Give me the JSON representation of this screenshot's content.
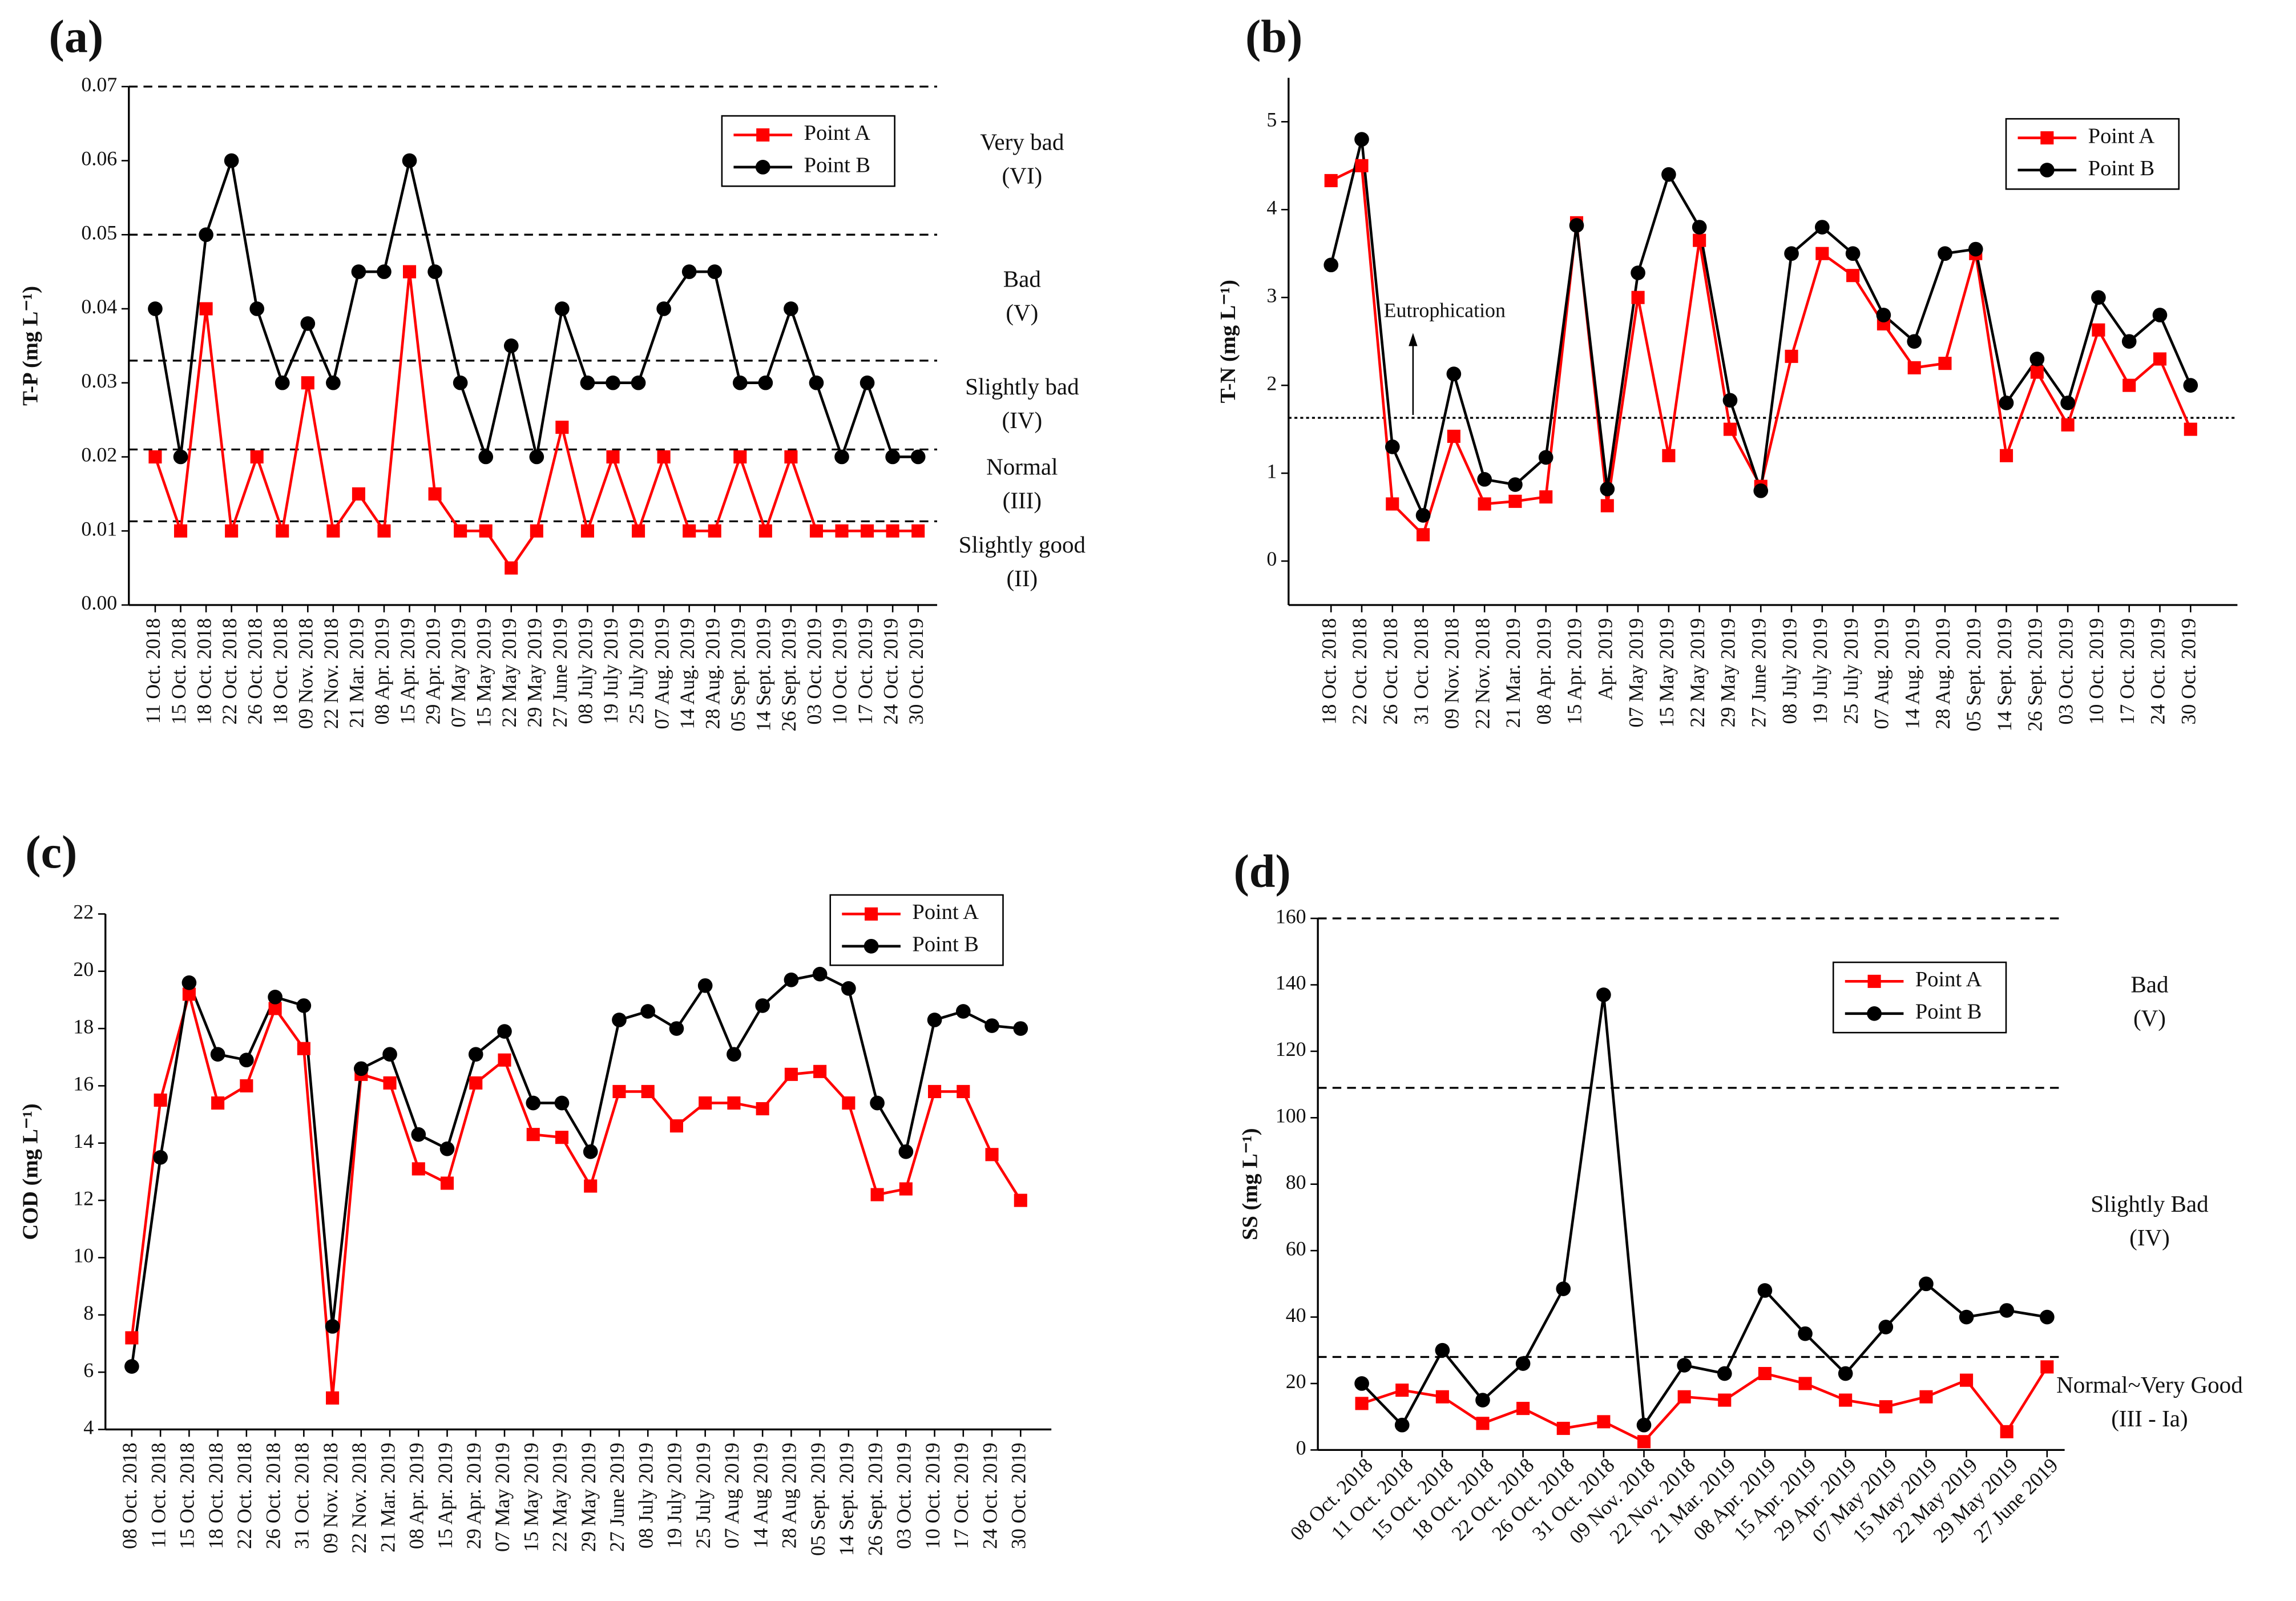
{
  "chart_data": [
    {
      "type": "line",
      "panel": "(a)",
      "ylabel": "T-P (mg L⁻¹)",
      "categories": [
        "11 Oct. 2018",
        "15 Oct. 2018",
        "18 Oct. 2018",
        "22 Oct. 2018",
        "26 Oct. 2018",
        "18 Oct. 2018",
        "09 Nov. 2018",
        "22 Nov. 2018",
        "21 Mar. 2019",
        "08 Apr. 2019",
        "15 Apr. 2019",
        "29 Apr. 2019",
        "07 May 2019",
        "15 May 2019",
        "22 May 2019",
        "29 May 2019",
        "27 June 2019",
        "08 July 2019",
        "19 July 2019",
        "25 July 2019",
        "07 Aug. 2019",
        "14 Aug. 2019",
        "28 Aug. 2019",
        "05 Sept. 2019",
        "14 Sept. 2019",
        "26 Sept. 2019",
        "03 Oct. 2019",
        "10 Oct. 2019",
        "17 Oct. 2019",
        "24 Oct. 2019",
        "30 Oct. 2019"
      ],
      "series": [
        {
          "name": "Point A",
          "color": "#ff0000",
          "marker": "square",
          "values": [
            0.02,
            0.01,
            0.04,
            0.01,
            0.02,
            0.01,
            0.03,
            0.01,
            0.015,
            0.01,
            0.045,
            0.015,
            0.01,
            0.01,
            0.005,
            0.01,
            0.024,
            0.01,
            0.02,
            0.01,
            0.02,
            0.01,
            0.01,
            0.02,
            0.01,
            0.02,
            0.01,
            0.01,
            0.01,
            0.01,
            0.01
          ]
        },
        {
          "name": "Point B",
          "color": "#000000",
          "marker": "circle",
          "values": [
            0.04,
            0.02,
            0.05,
            0.06,
            0.04,
            0.03,
            0.038,
            0.03,
            0.045,
            0.045,
            0.06,
            0.045,
            0.03,
            0.02,
            0.035,
            0.02,
            0.04,
            0.03,
            0.03,
            0.03,
            0.04,
            0.045,
            0.045,
            0.03,
            0.03,
            0.04,
            0.03,
            0.02,
            0.03,
            0.02,
            0.02
          ]
        }
      ],
      "ylim": [
        0,
        0.07
      ],
      "yticks": [
        {
          "value": 0,
          "label": "0.00"
        },
        {
          "value": 0.01,
          "label": "0.01"
        },
        {
          "value": 0.02,
          "label": "0.02"
        },
        {
          "value": 0.03,
          "label": "0.03"
        },
        {
          "value": 0.04,
          "label": "0.04"
        },
        {
          "value": 0.05,
          "label": "0.05"
        },
        {
          "value": 0.06,
          "label": "0.06"
        },
        {
          "value": 0.07,
          "label": "0.07"
        }
      ],
      "reference_lines": [
        0.07,
        0.05,
        0.033,
        0.021,
        0.0113
      ],
      "reference_style": "dashed",
      "zone_labels": [
        [
          "Very bad",
          "(VI)"
        ],
        [
          "Bad",
          "(V)"
        ],
        [
          "Slightly bad",
          "(IV)"
        ],
        [
          "Normal",
          "(III)"
        ],
        [
          "Slightly good",
          "(II)"
        ]
      ]
    },
    {
      "type": "line",
      "panel": "(b)",
      "ylabel": "T-N (mg L⁻¹)",
      "categories": [
        "18 Oct. 2018",
        "22 Oct. 2018",
        "26 Oct. 2018",
        "31 Oct. 2018",
        "09 Nov. 2018",
        "22 Nov. 2018",
        "21 Mar. 2019",
        "08 Apr. 2019",
        "15 Apr. 2019",
        "Apr. 2019",
        "07 May 2019",
        "15 May 2019",
        "22 May 2019",
        "29 May 2019",
        "27 June 2019",
        "08 July 2019",
        "19 July 2019",
        "25 July 2019",
        "07 Aug. 2019",
        "14 Aug. 2019",
        "28 Aug. 2019",
        "05 Sept. 2019",
        "14 Sept. 2019",
        "26 Sept. 2019",
        "03 Oct. 2019",
        "10 Oct. 2019",
        "17 Oct. 2019",
        "24 Oct. 2019",
        "30 Oct. 2019"
      ],
      "series": [
        {
          "name": "Point A",
          "color": "#ff0000",
          "marker": "square",
          "values": [
            4.33,
            4.5,
            0.65,
            0.3,
            1.42,
            0.65,
            0.68,
            0.73,
            3.85,
            0.63,
            3.0,
            1.2,
            3.65,
            1.5,
            0.85,
            2.33,
            3.5,
            3.25,
            2.7,
            2.2,
            2.25,
            3.5,
            1.2,
            2.15,
            1.55,
            2.63,
            2.0,
            2.3,
            1.5
          ]
        },
        {
          "name": "Point B",
          "color": "#000000",
          "marker": "circle",
          "values": [
            3.37,
            4.8,
            1.3,
            0.52,
            2.13,
            0.93,
            0.87,
            1.18,
            3.82,
            0.82,
            3.28,
            4.4,
            3.8,
            1.83,
            0.8,
            3.5,
            3.8,
            3.5,
            2.8,
            2.5,
            3.5,
            3.55,
            1.8,
            2.3,
            1.8,
            3.0,
            2.5,
            2.8,
            2.0
          ]
        }
      ],
      "ylim": [
        -0.5,
        5.5
      ],
      "yticks": [
        0,
        1,
        2,
        3,
        4,
        5
      ],
      "reference_lines": [
        1.63
      ],
      "reference_style": "dotted",
      "annotation": "Eutrophication"
    },
    {
      "type": "line",
      "panel": "(c)",
      "ylabel": "COD (mg L⁻¹)",
      "categories": [
        "08 Oct. 2018",
        "11 Oct. 2018",
        "15 Oct. 2018",
        "18 Oct. 2018",
        "22 Oct. 2018",
        "26 Oct. 2018",
        "31 Oct. 2018",
        "09 Nov. 2018",
        "22 Nov. 2018",
        "21 Mar. 2019",
        "08 Apr. 2019",
        "15 Apr. 2019",
        "29 Apr. 2019",
        "07 May 2019",
        "15 May 2019",
        "22 May 2019",
        "29 May 2019",
        "27 June 2019",
        "08 July 2019",
        "19 July 2019",
        "25 July 2019",
        "07 Aug 2019",
        "14 Aug 2019",
        "28 Aug 2019",
        "05 Sept. 2019",
        "14 Sept. 2019",
        "26 Sept. 2019",
        "03 Oct. 2019",
        "10 Oct. 2019",
        "17 Oct. 2019",
        "24 Oct. 2019",
        "30 Oct. 2019"
      ],
      "series": [
        {
          "name": "Point A",
          "color": "#ff0000",
          "marker": "square",
          "values": [
            7.2,
            15.5,
            19.2,
            15.4,
            16.0,
            18.7,
            17.3,
            5.1,
            16.4,
            16.1,
            13.1,
            12.6,
            16.1,
            16.9,
            14.3,
            14.2,
            12.5,
            15.8,
            15.8,
            14.6,
            15.4,
            15.4,
            15.2,
            16.4,
            16.5,
            15.4,
            12.2,
            12.4,
            15.8,
            15.8,
            13.6,
            12.0
          ]
        },
        {
          "name": "Point B",
          "color": "#000000",
          "marker": "circle",
          "values": [
            6.2,
            13.5,
            19.6,
            17.1,
            16.9,
            19.1,
            18.8,
            7.6,
            16.6,
            17.1,
            14.3,
            13.8,
            17.1,
            17.9,
            15.4,
            15.4,
            13.7,
            18.3,
            18.6,
            18.0,
            19.5,
            17.1,
            18.8,
            19.7,
            19.9,
            19.4,
            15.4,
            13.7,
            18.3,
            18.6,
            18.1,
            18.0
          ]
        }
      ],
      "ylim": [
        4,
        22
      ],
      "yticks": [
        4,
        6,
        8,
        10,
        12,
        14,
        16,
        18,
        20,
        22
      ]
    },
    {
      "type": "line",
      "panel": "(d)",
      "ylabel": "SS (mg L⁻¹)",
      "categories": [
        "08 Oct. 2018",
        "11 Oct. 2018",
        "15 Oct. 2018",
        "18 Oct. 2018",
        "22 Oct. 2018",
        "26 Oct. 2018",
        "31 Oct. 2018",
        "09 Nov. 2018",
        "22 Nov. 2018",
        "21 Mar. 2019",
        "08 Apr. 2019",
        "15 Apr. 2019",
        "29 Apr. 2019",
        "07 May 2019",
        "15 May 2019",
        "22 May 2019",
        "29 May 2019",
        "27 June 2019"
      ],
      "series": [
        {
          "name": "Point A",
          "color": "#ff0000",
          "marker": "square",
          "values": [
            14,
            18,
            16,
            8,
            12.5,
            6.5,
            8.5,
            2.5,
            16,
            15,
            23,
            20,
            15,
            13,
            16,
            21,
            5.5,
            25
          ]
        },
        {
          "name": "Point B",
          "color": "#000000",
          "marker": "circle",
          "values": [
            20,
            7.5,
            30,
            15,
            26,
            48.5,
            137,
            7.5,
            25.5,
            23,
            48,
            35,
            23,
            37,
            50,
            40,
            42,
            40
          ]
        }
      ],
      "ylim": [
        0,
        160
      ],
      "yticks": [
        0,
        20,
        40,
        60,
        80,
        100,
        120,
        140,
        160
      ],
      "reference_lines": [
        160,
        109,
        28
      ],
      "reference_style": "dashed",
      "zone_labels": [
        [
          "Bad",
          "(V)"
        ],
        [
          "Slightly Bad",
          "(IV)"
        ],
        [
          "Normal~Very Good",
          "(III - Ia)"
        ]
      ]
    }
  ]
}
